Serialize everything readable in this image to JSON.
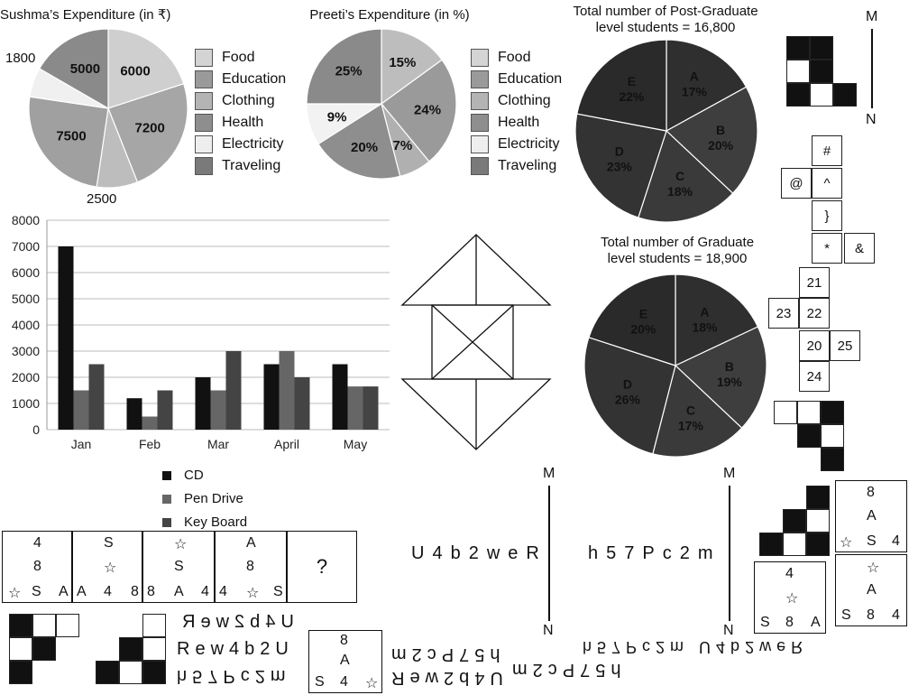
{
  "sushma": {
    "title": "Sushma’s Expenditure (in ₹)",
    "slices": [
      "6000",
      "7200",
      "2500",
      "7500",
      "1800",
      "5000"
    ],
    "out_1800": "1800",
    "out_2500": "2500"
  },
  "preeti": {
    "title": "Preeti’s Expenditure (in %)",
    "slices": [
      "15%",
      "24%",
      "7%",
      "20%",
      "9%",
      "25%"
    ]
  },
  "legend": [
    "Food",
    "Education",
    "Clothing",
    "Health",
    "Electricity",
    "Traveling"
  ],
  "postgrad": {
    "title1": "Total number of Post-Graduate",
    "title2": "level students = 16,800",
    "slices": [
      {
        "l": "A",
        "v": "17%"
      },
      {
        "l": "B",
        "v": "20%"
      },
      {
        "l": "C",
        "v": "18%"
      },
      {
        "l": "D",
        "v": "23%"
      },
      {
        "l": "E",
        "v": "22%"
      }
    ]
  },
  "grad": {
    "title1": "Total number of Graduate",
    "title2": "level students = 18,900",
    "slices": [
      {
        "l": "A",
        "v": "18%"
      },
      {
        "l": "B",
        "v": "19%"
      },
      {
        "l": "C",
        "v": "17%"
      },
      {
        "l": "D",
        "v": "26%"
      },
      {
        "l": "E",
        "v": "20%"
      }
    ]
  },
  "chart_data": [
    {
      "type": "pie",
      "title": "Sushma’s Expenditure (in ₹)",
      "categories": [
        "Food",
        "Education",
        "Clothing",
        "Health",
        "Electricity",
        "Traveling"
      ],
      "values": [
        6000,
        7200,
        2500,
        7500,
        1800,
        5000
      ]
    },
    {
      "type": "pie",
      "title": "Preeti’s Expenditure (in %)",
      "categories": [
        "Food",
        "Education",
        "Clothing",
        "Health",
        "Electricity",
        "Traveling"
      ],
      "values": [
        15,
        24,
        7,
        20,
        9,
        25
      ]
    },
    {
      "type": "pie",
      "title": "Total number of Post-Graduate level students = 16,800",
      "categories": [
        "A",
        "B",
        "C",
        "D",
        "E"
      ],
      "values": [
        17,
        20,
        18,
        23,
        22
      ]
    },
    {
      "type": "pie",
      "title": "Total number of Graduate level students = 18,900",
      "categories": [
        "A",
        "B",
        "C",
        "D",
        "E"
      ],
      "values": [
        18,
        19,
        17,
        26,
        20
      ]
    },
    {
      "type": "bar",
      "categories": [
        "Jan",
        "Feb",
        "Mar",
        "April",
        "May"
      ],
      "series": [
        {
          "name": "CD",
          "values": [
            7000,
            1200,
            2000,
            2500,
            2500
          ]
        },
        {
          "name": "Pen Drive",
          "values": [
            1500,
            500,
            1500,
            3000,
            1650
          ]
        },
        {
          "name": "Key Board",
          "values": [
            2500,
            1500,
            3000,
            2000,
            1650
          ]
        }
      ],
      "ylim": [
        0,
        8000
      ],
      "yticks": [
        "0",
        "1000",
        "2000",
        "3000",
        "4000",
        "5000",
        "6000",
        "7000",
        "8000"
      ],
      "grid": true
    }
  ],
  "bar_legend": [
    "CD",
    "Pen Drive",
    "Key Board"
  ],
  "net": {
    "hash": "#",
    "at": "@",
    "caret": "^",
    "brace": "}",
    "star": "*",
    "amp": "&"
  },
  "net2": [
    "21",
    "23",
    "22",
    "20",
    "25",
    "24"
  ],
  "mirror": {
    "m": "M",
    "n": "N"
  },
  "seq1": "U4b2weR",
  "seq2": "h57Pc2m",
  "seq_opts": [
    "U4b2weR",
    "Rew4b2U",
    "h57Pc2m"
  ],
  "seq_opts2": [
    "h57Pc2m",
    "U4b2weR"
  ],
  "seq_flip": "h57Pc2m U4b2weR",
  "cards": {
    "c1": [
      "4",
      "8",
      "☆",
      "S",
      "A"
    ],
    "c2": [
      "S",
      "☆",
      "A",
      "4",
      "8"
    ],
    "c3": [
      "☆",
      "S",
      "8",
      "A",
      "4"
    ],
    "c4": [
      "A",
      "8",
      "4",
      "☆",
      "S"
    ],
    "c5": "?",
    "opt_a": [
      "8",
      "A",
      "S",
      "4",
      "☆"
    ],
    "opt_r1": [
      "8",
      "A",
      "☆",
      "S",
      "4"
    ],
    "opt_r2": [
      "4",
      "☆",
      "S",
      "8",
      "A"
    ],
    "opt_r3": [
      "☆",
      "A",
      "S",
      "8",
      "4"
    ]
  }
}
